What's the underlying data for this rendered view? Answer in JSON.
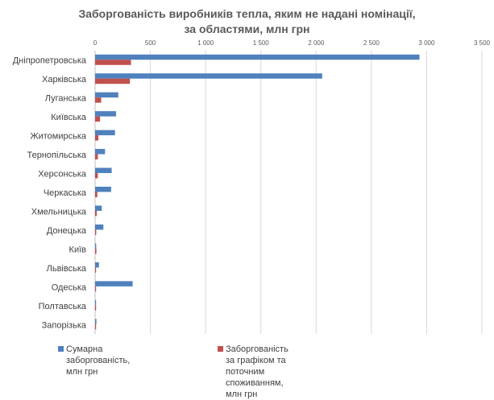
{
  "chart_data": {
    "type": "bar",
    "orientation": "horizontal",
    "title": "Заборгованість виробників тепла, яким не надані номінації, за областями, млн грн",
    "title_lines": [
      "Заборгованість виробників тепла, яким не надані номінації,",
      "за областями, млн грн"
    ],
    "categories": [
      "Дніпропетровська",
      "Харківська",
      "Луганська",
      "Київська",
      "Житомирська",
      "Тернопільська",
      "Херсонська",
      "Черкаська",
      "Хмельницька",
      "Донецька",
      "Київ",
      "Львівська",
      "Одеська",
      "Полтавська",
      "Запорізька"
    ],
    "series": [
      {
        "name": "Сумарна заборгованість, млн грн",
        "color": "#4f81bd",
        "values": [
          2935,
          2055,
          210,
          190,
          180,
          90,
          150,
          145,
          60,
          75,
          10,
          35,
          340,
          8,
          12
        ]
      },
      {
        "name": "Заборгованість за графіком та поточним споживанням, млн грн",
        "legend_lines": [
          "Заборгованість за графіком та поточним споживанням,",
          "млн грн"
        ],
        "color": "#c0504d",
        "values": [
          325,
          315,
          55,
          45,
          30,
          25,
          25,
          20,
          15,
          10,
          12,
          5,
          5,
          5,
          5
        ]
      }
    ],
    "x_ticks": [
      "0",
      "500",
      "1 000",
      "1 500",
      "2 000",
      "2 500",
      "3 000",
      "3 500"
    ],
    "x_tick_values": [
      0,
      500,
      1000,
      1500,
      2000,
      2500,
      3000,
      3500
    ],
    "xlim": [
      0,
      3500
    ],
    "xaxis_position": "top",
    "grid": true,
    "legend_position": "bottom"
  }
}
